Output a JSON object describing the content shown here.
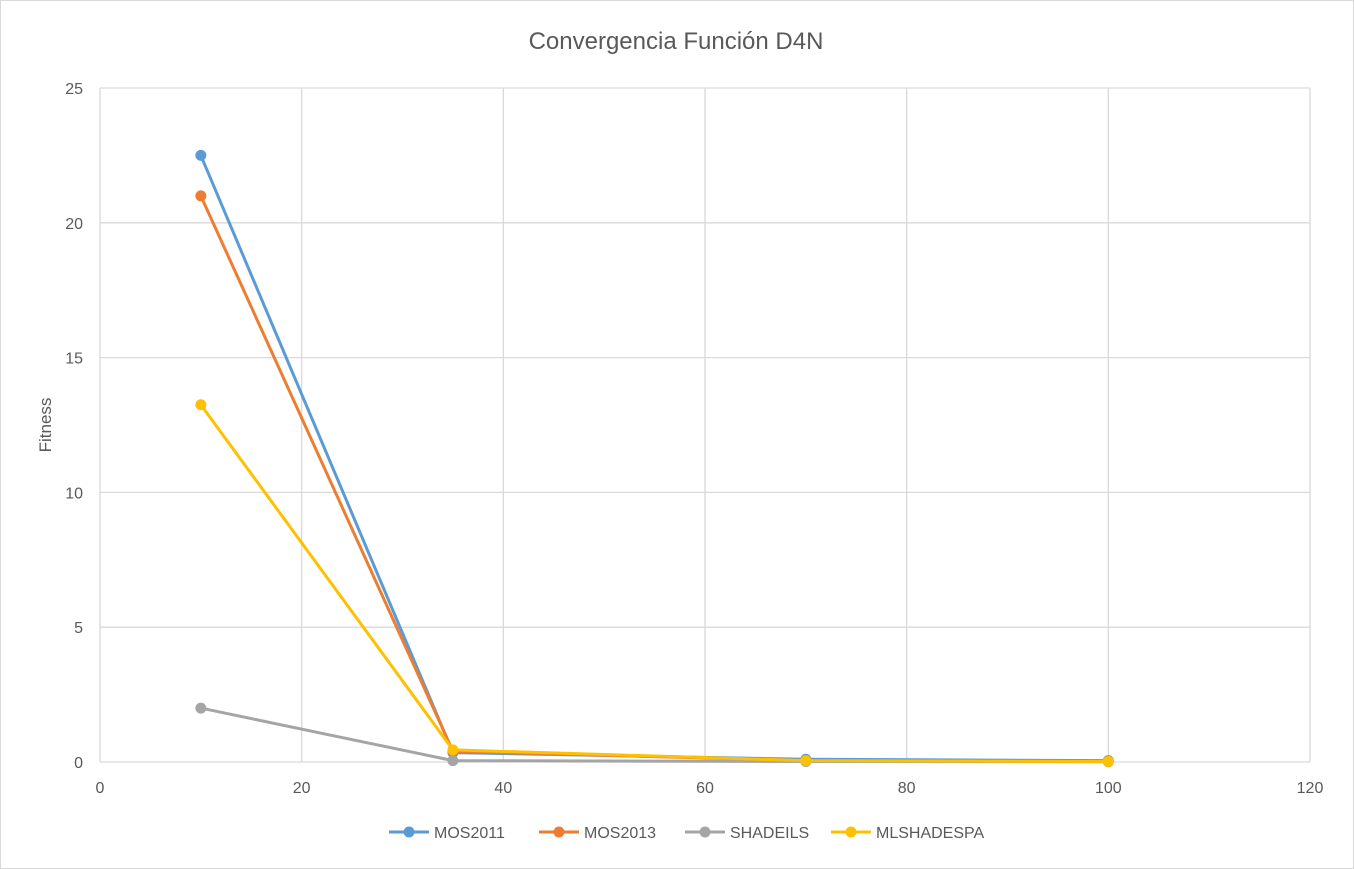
{
  "chart_data": {
    "type": "line",
    "title": "Convergencia Función D4N",
    "xlabel": "",
    "ylabel": "Fitness",
    "xlim": [
      0,
      120
    ],
    "ylim": [
      0,
      25
    ],
    "xticks": [
      0,
      20,
      40,
      60,
      80,
      100,
      120
    ],
    "yticks": [
      0,
      5,
      10,
      15,
      20,
      25
    ],
    "grid": true,
    "legend_position": "bottom",
    "series": [
      {
        "name": "MOS2011",
        "color": "#5b9bd5",
        "x": [
          10,
          35,
          70,
          100
        ],
        "y": [
          22.5,
          0.35,
          0.1,
          0.05
        ]
      },
      {
        "name": "MOS2013",
        "color": "#ed7d31",
        "x": [
          10,
          35,
          70,
          100
        ],
        "y": [
          21.0,
          0.4,
          0.05,
          0.02
        ]
      },
      {
        "name": "SHADEILS",
        "color": "#a5a5a5",
        "x": [
          10,
          35,
          70,
          100
        ],
        "y": [
          2.0,
          0.05,
          0.02,
          0.01
        ]
      },
      {
        "name": "MLSHADESPA",
        "color": "#ffc000",
        "x": [
          10,
          35,
          70,
          100
        ],
        "y": [
          13.25,
          0.45,
          0.05,
          0.02
        ]
      }
    ]
  }
}
